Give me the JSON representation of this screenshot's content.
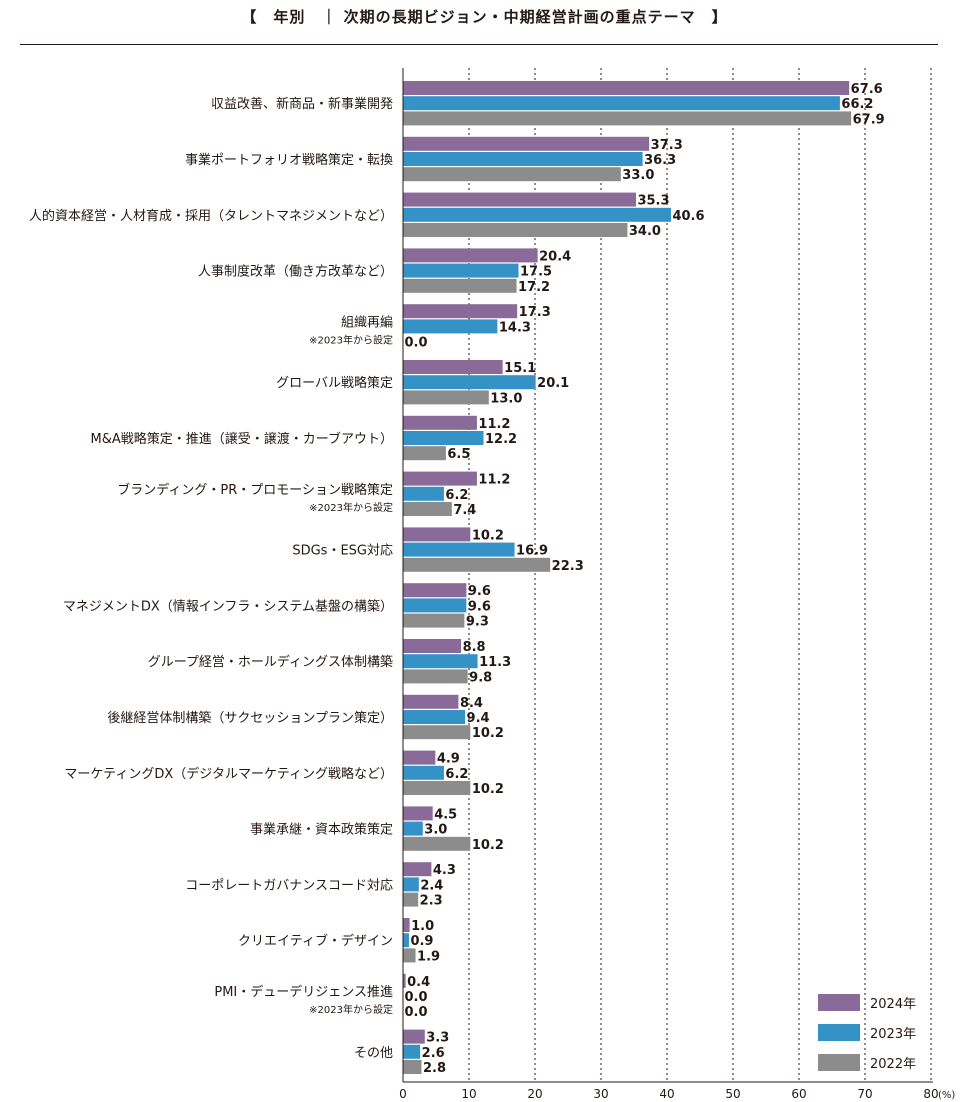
{
  "title": "【　年別　｜ 次期の長期ビジョン・中期経営計画の重点テーマ　】",
  "chart_data": {
    "type": "bar",
    "orientation": "horizontal",
    "title": "【　年別　｜ 次期の長期ビジョン・中期経営計画の重点テーマ　】",
    "xlabel": "",
    "ylabel": "",
    "x_unit": "(%)",
    "xlim": [
      0,
      80
    ],
    "x_ticks": [
      0,
      10,
      20,
      30,
      40,
      50,
      60,
      70,
      80
    ],
    "grid": "vertical dotted lines",
    "legend_position": "bottom-right",
    "categories": [
      {
        "label": "収益改善、新商品・新事業開発",
        "note": ""
      },
      {
        "label": "事業ポートフォリオ戦略策定・転換",
        "note": ""
      },
      {
        "label": "人的資本経営・人材育成・採用（タレントマネジメントなど）",
        "note": ""
      },
      {
        "label": "人事制度改革（働き方改革など）",
        "note": ""
      },
      {
        "label": "組織再編",
        "note": "※2023年から設定"
      },
      {
        "label": "グローバル戦略策定",
        "note": ""
      },
      {
        "label": "M&A戦略策定・推進（譲受・譲渡・カーブアウト）",
        "note": ""
      },
      {
        "label": "ブランディング・PR・プロモーション戦略策定",
        "note": "※2023年から設定"
      },
      {
        "label": "SDGs・ESG対応",
        "note": ""
      },
      {
        "label": "マネジメントDX（情報インフラ・システム基盤の構築）",
        "note": ""
      },
      {
        "label": "グループ経営・ホールディングス体制構築",
        "note": ""
      },
      {
        "label": "後継経営体制構築（サクセッションプラン策定）",
        "note": ""
      },
      {
        "label": "マーケティングDX（デジタルマーケティング戦略など）",
        "note": ""
      },
      {
        "label": "事業承継・資本政策策定",
        "note": ""
      },
      {
        "label": "コーポレートガバナンスコード対応",
        "note": ""
      },
      {
        "label": "クリエイティブ・デザイン",
        "note": ""
      },
      {
        "label": "PMI・デューデリジェンス推進",
        "note": "※2023年から設定"
      },
      {
        "label": "その他",
        "note": ""
      }
    ],
    "series": [
      {
        "name": "2024年",
        "color": "#8a6a98",
        "values": [
          67.6,
          37.3,
          35.3,
          20.4,
          17.3,
          15.1,
          11.2,
          11.2,
          10.2,
          9.6,
          8.8,
          8.4,
          4.9,
          4.5,
          4.3,
          1.0,
          0.4,
          3.3
        ]
      },
      {
        "name": "2023年",
        "color": "#3592c6",
        "values": [
          66.2,
          36.3,
          40.6,
          17.5,
          14.3,
          20.1,
          12.2,
          6.2,
          16.9,
          9.6,
          11.3,
          9.4,
          6.2,
          3.0,
          2.4,
          0.9,
          0.0,
          2.6
        ]
      },
      {
        "name": "2022年",
        "color": "#8c8c8c",
        "values": [
          67.9,
          33.0,
          34.0,
          17.2,
          0.0,
          13.0,
          6.5,
          7.4,
          22.3,
          9.3,
          9.8,
          10.2,
          10.2,
          10.2,
          2.3,
          1.9,
          0.0,
          2.8
        ]
      }
    ]
  }
}
